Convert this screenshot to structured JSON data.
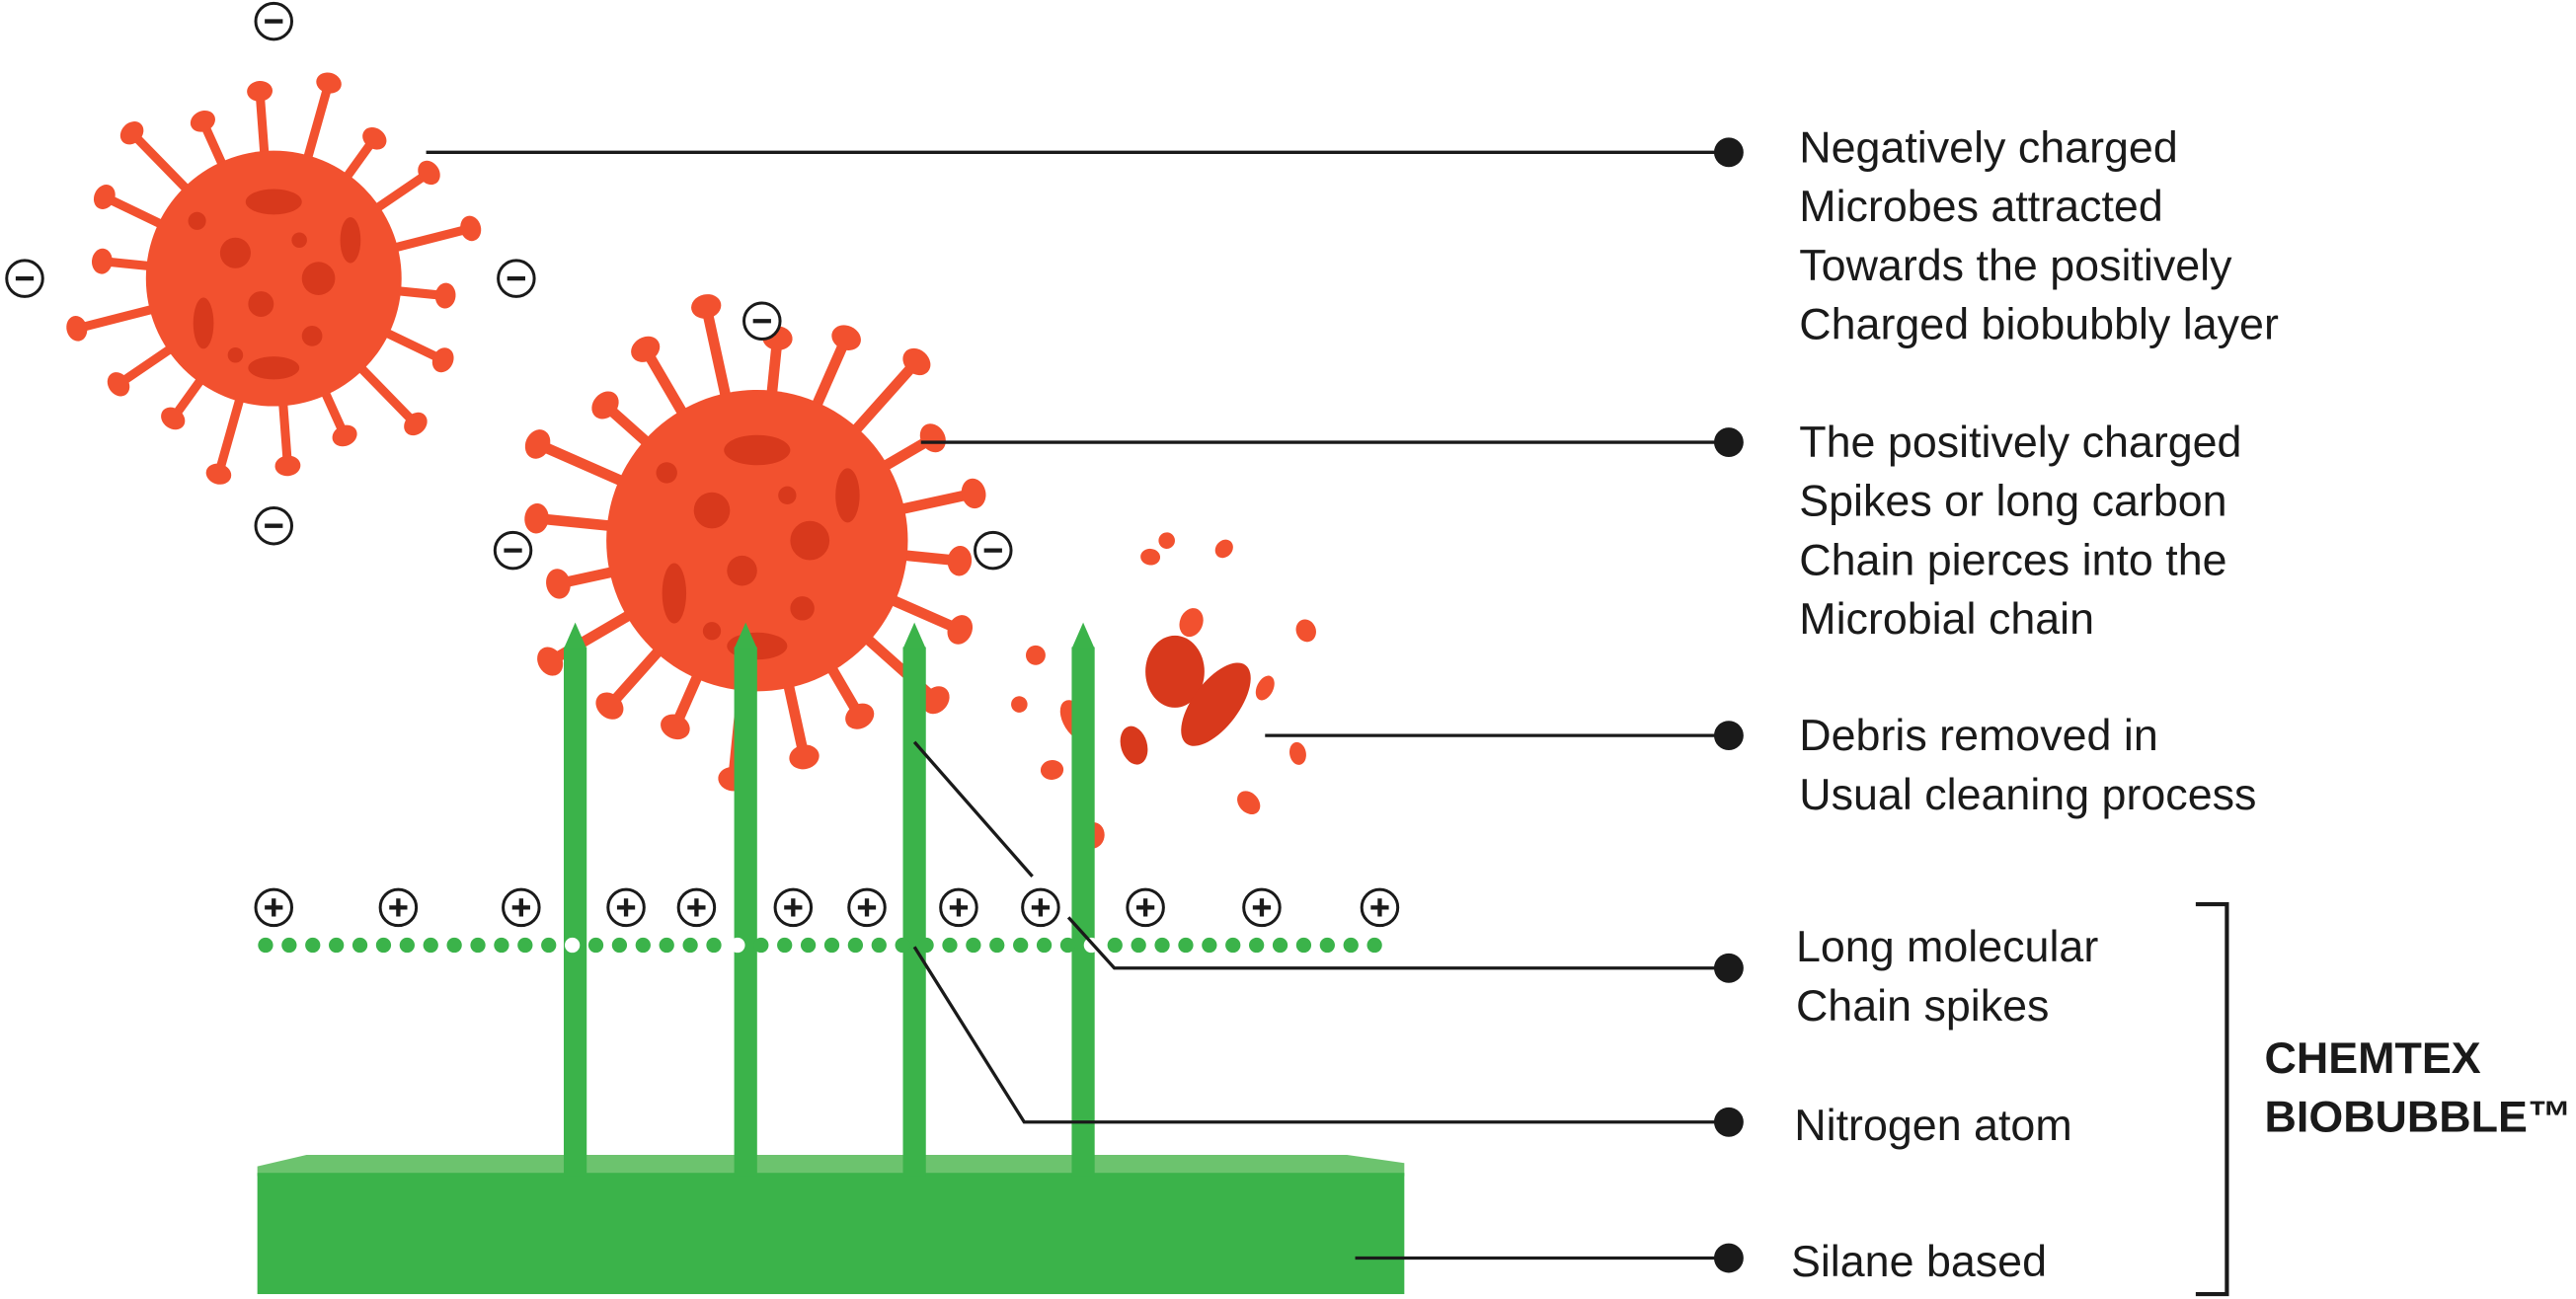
{
  "annotations": [
    {
      "lines": [
        "Negatively charged",
        "Microbes attracted",
        "Towards the positively",
        "Charged biobubbly layer"
      ]
    },
    {
      "lines": [
        "The positively charged",
        "Spikes or long carbon",
        "Chain pierces into the",
        "Microbial chain"
      ]
    },
    {
      "lines": [
        "Debris removed in",
        "Usual cleaning process"
      ]
    },
    {
      "lines": [
        "Long molecular",
        "Chain spikes"
      ]
    },
    {
      "lines": [
        "Nitrogen atom"
      ]
    },
    {
      "lines": [
        "Silane based"
      ]
    }
  ],
  "brand": {
    "lines": [
      "CHEMTEX",
      "BIOBUBBLE™"
    ]
  }
}
